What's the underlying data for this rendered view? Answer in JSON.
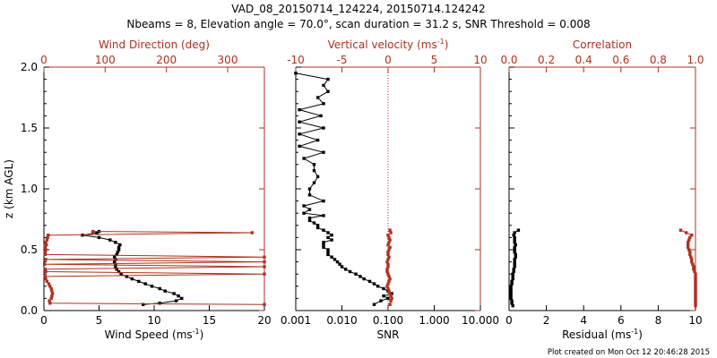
{
  "header": {
    "title": "VAD_08_20150714_124224, 20150714.124242",
    "subtitle": "Nbeams = 8, Elevation angle = 70.0°, scan duration = 31.2 s, SNR Threshold = 0.008"
  },
  "footer": {
    "text": "Plot created on Mon Oct 12 20:46:28 2015"
  },
  "colors": {
    "primary": "#000000",
    "secondary": "#b03020"
  },
  "chart_data": [
    {
      "type": "line",
      "panel": "left",
      "ylabel": "z (km AGL)",
      "ylim": [
        0,
        2.0
      ],
      "yticks": [
        "0.0",
        "0.5",
        "1.0",
        "1.5",
        "2.0"
      ],
      "xlabel_bottom": {
        "pre": "Wind Speed (ms",
        "sup": "-1",
        "post": ")"
      },
      "xlim_bottom": [
        0,
        20
      ],
      "xticks_bottom": [
        "0",
        "5",
        "10",
        "15",
        "20"
      ],
      "xlabel_top": "Wind Direction (deg)",
      "xlim_top": [
        0,
        360
      ],
      "xticks_top": [
        "0",
        "100",
        "200",
        "300"
      ],
      "series": [
        {
          "axis": "bottom",
          "color": "#000000",
          "z": [
            0.05,
            0.06,
            0.08,
            0.1,
            0.12,
            0.14,
            0.16,
            0.18,
            0.2,
            0.22,
            0.24,
            0.26,
            0.28,
            0.3,
            0.32,
            0.34,
            0.36,
            0.38,
            0.4,
            0.42,
            0.44,
            0.46,
            0.48,
            0.5,
            0.52,
            0.54,
            0.56,
            0.58,
            0.6,
            0.62,
            0.64,
            0.65
          ],
          "x": [
            9.0,
            10.5,
            12.0,
            12.5,
            12.2,
            11.8,
            11.0,
            10.5,
            9.8,
            9.2,
            8.6,
            8.0,
            7.5,
            7.0,
            6.8,
            6.6,
            6.5,
            6.5,
            6.4,
            6.5,
            6.4,
            6.6,
            6.7,
            6.8,
            6.8,
            6.9,
            6.5,
            6.0,
            5.0,
            3.5,
            4.8,
            5.0
          ]
        },
        {
          "axis": "top",
          "color": "#b03020",
          "z": [
            0.05,
            0.06,
            0.08,
            0.1,
            0.12,
            0.14,
            0.16,
            0.18,
            0.2,
            0.22,
            0.24,
            0.26,
            0.28,
            0.3,
            0.32,
            0.34,
            0.36,
            0.38,
            0.4,
            0.42,
            0.44,
            0.46,
            0.48,
            0.5,
            0.52,
            0.54,
            0.56,
            0.58,
            0.6,
            0.62,
            0.64,
            0.65
          ],
          "x": [
            360,
            10,
            9,
            12,
            13,
            14,
            13,
            12,
            10,
            8,
            5,
            3,
            2,
            360,
            3,
            2,
            360,
            1,
            360,
            3,
            360,
            2,
            2,
            3,
            2,
            4,
            3,
            5,
            6,
            7,
            340,
            80
          ]
        }
      ]
    },
    {
      "type": "line",
      "panel": "middle",
      "ylim": [
        0,
        2.0
      ],
      "xlabel_bottom": {
        "pre": "SNR",
        "sup": "",
        "post": ""
      },
      "xscale_bottom": "log",
      "xlim_bottom": [
        0.001,
        10
      ],
      "xticks_bottom": [
        "0.001",
        "0.010",
        "0.100",
        "1.000",
        "10.000"
      ],
      "xlabel_top": {
        "pre": "Vertical velocity (ms",
        "sup": "-1",
        "post": ")"
      },
      "xlim_top": [
        -10,
        10
      ],
      "xticks_top": [
        "-10",
        "-5",
        "0",
        "5",
        "10"
      ],
      "reference_line_top_x": 0,
      "series": [
        {
          "axis": "bottom",
          "color": "#000000",
          "z": [
            0.05,
            0.08,
            0.1,
            0.12,
            0.14,
            0.16,
            0.18,
            0.2,
            0.22,
            0.24,
            0.26,
            0.28,
            0.3,
            0.32,
            0.34,
            0.36,
            0.38,
            0.4,
            0.42,
            0.44,
            0.46,
            0.48,
            0.5,
            0.52,
            0.54,
            0.56,
            0.58,
            0.6,
            0.62,
            0.64,
            0.66,
            0.68,
            0.7,
            0.72,
            0.74,
            0.76,
            0.78,
            0.8,
            0.83,
            0.86,
            0.9,
            0.95,
            1.0,
            1.05,
            1.1,
            1.15,
            1.2,
            1.25,
            1.3,
            1.35,
            1.4,
            1.45,
            1.5,
            1.55,
            1.6,
            1.65,
            1.7,
            1.75,
            1.8,
            1.85,
            1.9,
            1.95
          ],
          "x": [
            0.05,
            0.07,
            0.1,
            0.08,
            0.12,
            0.1,
            0.08,
            0.06,
            0.05,
            0.04,
            0.03,
            0.025,
            0.02,
            0.015,
            0.012,
            0.01,
            0.009,
            0.008,
            0.007,
            0.006,
            0.005,
            0.005,
            0.005,
            0.004,
            0.004,
            0.004,
            0.006,
            0.005,
            0.006,
            0.005,
            0.004,
            0.003,
            0.003,
            0.0025,
            0.002,
            0.002,
            0.004,
            0.0015,
            0.002,
            0.0015,
            0.004,
            0.002,
            0.002,
            0.0025,
            0.003,
            0.0025,
            0.0025,
            0.0015,
            0.004,
            0.0012,
            0.003,
            0.0012,
            0.004,
            0.0012,
            0.0035,
            0.0012,
            0.004,
            0.003,
            0.005,
            0.004,
            0.005,
            0.001
          ]
        },
        {
          "axis": "top",
          "color": "#b03020",
          "z": [
            0.05,
            0.08,
            0.1,
            0.12,
            0.14,
            0.16,
            0.18,
            0.2,
            0.22,
            0.24,
            0.26,
            0.28,
            0.3,
            0.32,
            0.34,
            0.36,
            0.38,
            0.4,
            0.42,
            0.44,
            0.46,
            0.48,
            0.5,
            0.52,
            0.54,
            0.56,
            0.58,
            0.6,
            0.62,
            0.64,
            0.66
          ],
          "x": [
            0.2,
            0.3,
            0.4,
            0.3,
            0.2,
            0.1,
            0.0,
            -0.1,
            0.0,
            0.1,
            0.2,
            0.1,
            0.0,
            -0.1,
            -0.1,
            0.0,
            0.0,
            -0.1,
            0.0,
            0.1,
            0.0,
            0.0,
            0.1,
            0.2,
            0.0,
            0.1,
            0.2,
            0.1,
            0.0,
            0.3,
            0.2
          ]
        }
      ]
    },
    {
      "type": "line",
      "panel": "right",
      "ylim": [
        0,
        2.0
      ],
      "xlabel_bottom": {
        "pre": "Residual (ms",
        "sup": "-1",
        "post": ")"
      },
      "xlim_bottom": [
        0,
        10
      ],
      "xticks_bottom": [
        "0",
        "2",
        "4",
        "6",
        "8",
        "10"
      ],
      "xlabel_top": "Correlation",
      "xlim_top": [
        0,
        1.0
      ],
      "xticks_top": [
        "0.0",
        "0.2",
        "0.4",
        "0.6",
        "0.8",
        "1.0"
      ],
      "series": [
        {
          "axis": "bottom",
          "color": "#000000",
          "z": [
            0.04,
            0.06,
            0.08,
            0.1,
            0.12,
            0.14,
            0.16,
            0.18,
            0.2,
            0.22,
            0.24,
            0.26,
            0.28,
            0.3,
            0.32,
            0.34,
            0.36,
            0.38,
            0.4,
            0.42,
            0.44,
            0.46,
            0.48,
            0.5,
            0.52,
            0.54,
            0.56,
            0.58,
            0.6,
            0.62,
            0.64,
            0.66
          ],
          "x": [
            0.2,
            0.15,
            0.15,
            0.1,
            0.1,
            0.1,
            0.1,
            0.1,
            0.1,
            0.15,
            0.15,
            0.2,
            0.2,
            0.2,
            0.25,
            0.25,
            0.3,
            0.3,
            0.3,
            0.3,
            0.35,
            0.35,
            0.3,
            0.3,
            0.3,
            0.35,
            0.3,
            0.3,
            0.3,
            0.25,
            0.3,
            0.5
          ]
        },
        {
          "axis": "top",
          "color": "#b03020",
          "z": [
            0.04,
            0.06,
            0.08,
            0.1,
            0.12,
            0.14,
            0.16,
            0.18,
            0.2,
            0.22,
            0.24,
            0.26,
            0.28,
            0.3,
            0.32,
            0.34,
            0.36,
            0.38,
            0.4,
            0.42,
            0.44,
            0.46,
            0.48,
            0.5,
            0.52,
            0.54,
            0.56,
            0.58,
            0.6,
            0.62,
            0.64,
            0.66
          ],
          "x": [
            1.0,
            1.0,
            1.0,
            1.0,
            1.0,
            1.0,
            1.0,
            1.0,
            1.0,
            1.0,
            1.0,
            1.0,
            1.0,
            1.0,
            0.995,
            0.99,
            0.99,
            0.985,
            0.98,
            0.98,
            0.975,
            0.97,
            0.97,
            0.965,
            0.96,
            0.96,
            0.96,
            0.965,
            0.97,
            0.98,
            0.95,
            0.92
          ]
        }
      ]
    }
  ]
}
